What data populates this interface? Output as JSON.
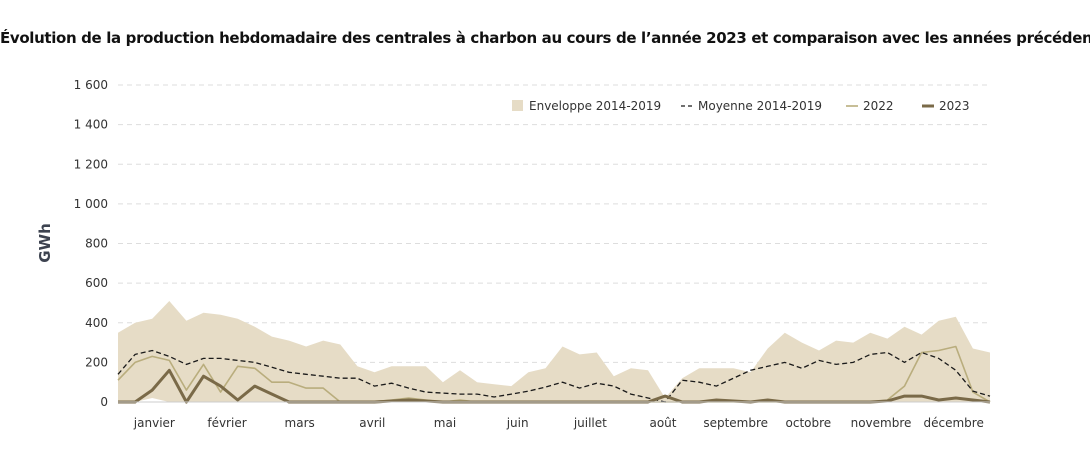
{
  "title": "Évolution de la production hebdomadaire des centrales à charbon au cours de l’année 2023 et comparaison avec les années précédentes",
  "colors": {
    "envelope": "#e6dcc6",
    "average": "#1a1a1a",
    "y2022": "#b9ad7d",
    "y2023": "#7a6a48",
    "grid": "#dddddd",
    "axis_text": "#333333",
    "ylabel": "#3d4350"
  },
  "chart_data": {
    "type": "area",
    "ylabel": "GWh",
    "xlabel": "",
    "ylim": [
      0,
      1600
    ],
    "xlim": [
      1,
      52
    ],
    "yticks": [
      0,
      200,
      400,
      600,
      800,
      1000,
      1200,
      1400,
      1600
    ],
    "ytick_labels": [
      "0",
      "200",
      "400",
      "600",
      "800",
      "1 000",
      "1 200",
      "1 400",
      "1 600"
    ],
    "grid": "horizontal dashed",
    "legend_position": "top-right",
    "month_labels": [
      {
        "label": "janvier",
        "week": 3
      },
      {
        "label": "février",
        "week": 8
      },
      {
        "label": "mars",
        "week": 13
      },
      {
        "label": "avril",
        "week": 18
      },
      {
        "label": "mai",
        "week": 23
      },
      {
        "label": "juin",
        "week": 28
      },
      {
        "label": "juillet",
        "week": 33
      },
      {
        "label": "août",
        "week": 38
      },
      {
        "label": "septembre",
        "week": 42.5
      },
      {
        "label": "octobre",
        "week": 47.5
      },
      {
        "label": "novembre",
        "week": 52.5
      },
      {
        "label": "décembre",
        "week": 57.5
      }
    ],
    "x": [
      1,
      2,
      3,
      4,
      5,
      6,
      7,
      8,
      9,
      10,
      11,
      12,
      13,
      14,
      15,
      16,
      17,
      18,
      19,
      20,
      21,
      22,
      23,
      24,
      25,
      26,
      27,
      28,
      29,
      30,
      31,
      32,
      33,
      34,
      35,
      36,
      37,
      38,
      39,
      40,
      41,
      42,
      43,
      44,
      45,
      46,
      47,
      48,
      49,
      50,
      51,
      52
    ],
    "series": [
      {
        "name": "Enveloppe 2014-2019",
        "kind": "band",
        "upper": [
          350,
          400,
          420,
          510,
          410,
          450,
          440,
          420,
          380,
          330,
          310,
          280,
          310,
          290,
          180,
          150,
          180,
          180,
          180,
          100,
          160,
          100,
          90,
          80,
          150,
          170,
          280,
          240,
          250,
          130,
          170,
          160,
          20,
          120,
          170,
          170,
          170,
          150,
          270,
          350,
          300,
          260,
          310,
          300,
          350,
          320,
          380,
          340,
          410,
          430,
          270,
          250
        ],
        "lower": [
          0,
          0,
          20,
          0,
          0,
          0,
          0,
          0,
          0,
          0,
          0,
          0,
          0,
          0,
          0,
          0,
          0,
          0,
          0,
          0,
          0,
          0,
          0,
          0,
          0,
          0,
          0,
          0,
          0,
          0,
          0,
          0,
          0,
          0,
          0,
          0,
          0,
          0,
          0,
          0,
          0,
          0,
          0,
          0,
          0,
          0,
          0,
          0,
          0,
          0,
          0,
          0
        ]
      },
      {
        "name": "Moyenne 2014-2019",
        "kind": "line",
        "values": [
          140,
          240,
          260,
          230,
          190,
          220,
          220,
          210,
          200,
          175,
          150,
          140,
          130,
          120,
          120,
          80,
          95,
          70,
          50,
          45,
          40,
          40,
          25,
          40,
          55,
          75,
          100,
          70,
          95,
          80,
          40,
          20,
          0,
          110,
          100,
          80,
          120,
          160,
          180,
          200,
          170,
          210,
          190,
          200,
          240,
          250,
          200,
          250,
          220,
          160,
          55,
          30
        ]
      },
      {
        "name": "2022",
        "kind": "line",
        "values": [
          110,
          200,
          230,
          210,
          60,
          190,
          50,
          180,
          170,
          100,
          100,
          70,
          70,
          0,
          0,
          0,
          10,
          20,
          10,
          0,
          10,
          0,
          0,
          0,
          0,
          0,
          0,
          0,
          0,
          0,
          0,
          0,
          0,
          0,
          0,
          0,
          0,
          0,
          0,
          0,
          0,
          0,
          0,
          0,
          0,
          10,
          80,
          250,
          260,
          280,
          50,
          0
        ]
      },
      {
        "name": "2023",
        "kind": "line",
        "values": [
          0,
          0,
          60,
          160,
          0,
          130,
          80,
          10,
          80,
          40,
          0,
          0,
          0,
          0,
          0,
          0,
          5,
          10,
          5,
          0,
          0,
          0,
          0,
          0,
          0,
          0,
          0,
          0,
          0,
          0,
          0,
          0,
          30,
          0,
          0,
          10,
          5,
          0,
          10,
          0,
          0,
          0,
          0,
          0,
          0,
          5,
          30,
          30,
          10,
          20,
          10,
          0
        ]
      }
    ]
  }
}
